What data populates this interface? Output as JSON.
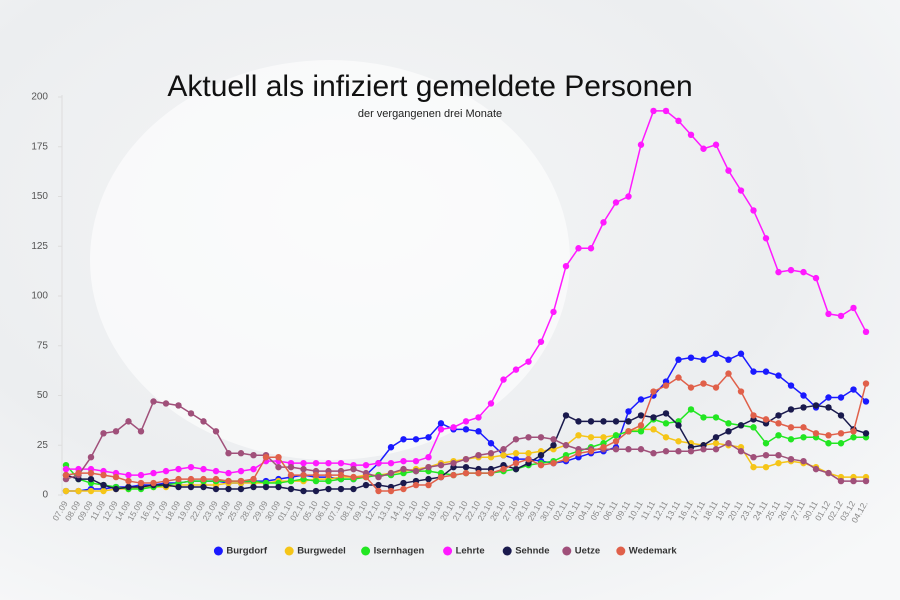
{
  "chart_data": {
    "type": "line",
    "title": "Aktuell als infiziert gemeldete Personen",
    "subtitle": "der vergangenen drei Monate",
    "categories": [
      "07.09",
      "08.09",
      "09.09",
      "11.09",
      "12.09",
      "14.09",
      "15.09",
      "16.09",
      "17.09",
      "18.09",
      "19.09",
      "22.09",
      "23.09",
      "24.09",
      "25.09",
      "28.09",
      "29.09",
      "30.09",
      "01.10",
      "02.10",
      "05.10",
      "06.10",
      "07.10",
      "08.10",
      "09.10",
      "12.10",
      "13.10",
      "14.10",
      "15.10",
      "16.10",
      "19.10",
      "20.10",
      "21.10",
      "22.10",
      "23.10",
      "26.10",
      "27.10",
      "28.10",
      "29.10",
      "30.10",
      "02.11",
      "03.11",
      "04.11",
      "05.11",
      "06.11",
      "09.11",
      "10.11",
      "11.11",
      "12.11",
      "13.11",
      "16.11",
      "17.11",
      "18.11",
      "19.11",
      "20.11",
      "23.11",
      "24.11",
      "25.11",
      "26.11",
      "27.11",
      "30.11",
      "01.12",
      "02.12",
      "03.12",
      "04.12."
    ],
    "series": [
      {
        "name": "Burgdorf",
        "color": "#1a1aff",
        "values": [
          2,
          2,
          3,
          3,
          4,
          4,
          5,
          5,
          6,
          6,
          7,
          7,
          7,
          6,
          6,
          7,
          7,
          8,
          9,
          10,
          9,
          9,
          8,
          8,
          10,
          16,
          24,
          28,
          28,
          29,
          36,
          33,
          33,
          32,
          26,
          20,
          18,
          18,
          17,
          16,
          17,
          19,
          21,
          22,
          24,
          42,
          48,
          50,
          57,
          68,
          69,
          68,
          71,
          68,
          71,
          62,
          62,
          60,
          55,
          50,
          44,
          49,
          49,
          53,
          47
        ]
      },
      {
        "name": "Burgwedel",
        "color": "#f5c518",
        "values": [
          2,
          2,
          2,
          2,
          3,
          3,
          4,
          4,
          4,
          5,
          5,
          5,
          5,
          6,
          6,
          6,
          6,
          7,
          7,
          7,
          8,
          8,
          9,
          9,
          10,
          10,
          11,
          12,
          13,
          14,
          16,
          17,
          18,
          19,
          19,
          20,
          21,
          21,
          22,
          23,
          25,
          30,
          29,
          29,
          30,
          32,
          33,
          33,
          29,
          27,
          26,
          25,
          26,
          25,
          24,
          14,
          14,
          16,
          17,
          16,
          14,
          11,
          9,
          9,
          9
        ]
      },
      {
        "name": "Isernhagen",
        "color": "#22e622",
        "values": [
          15,
          8,
          6,
          5,
          4,
          3,
          3,
          4,
          5,
          6,
          7,
          7,
          7,
          7,
          7,
          7,
          6,
          6,
          7,
          8,
          7,
          7,
          8,
          8,
          9,
          10,
          10,
          11,
          12,
          12,
          11,
          10,
          11,
          11,
          11,
          12,
          13,
          15,
          16,
          17,
          20,
          22,
          24,
          26,
          30,
          32,
          32,
          38,
          36,
          37,
          43,
          39,
          39,
          36,
          35,
          34,
          26,
          30,
          28,
          29,
          29,
          26,
          26,
          29,
          29
        ]
      },
      {
        "name": "Lehrte",
        "color": "#ff19ff",
        "values": [
          13,
          13,
          13,
          12,
          11,
          10,
          10,
          11,
          12,
          13,
          14,
          13,
          12,
          11,
          12,
          13,
          17,
          17,
          16,
          16,
          16,
          16,
          16,
          15,
          15,
          16,
          16,
          17,
          17,
          19,
          33,
          34,
          37,
          39,
          46,
          58,
          63,
          67,
          77,
          92,
          115,
          124,
          124,
          137,
          147,
          150,
          176,
          193,
          193,
          188,
          181,
          174,
          176,
          163,
          153,
          143,
          129,
          112,
          113,
          112,
          109,
          91,
          90,
          94,
          82
        ]
      },
      {
        "name": "Sehnde",
        "color": "#1a1a4d",
        "values": [
          10,
          8,
          8,
          5,
          3,
          4,
          4,
          5,
          5,
          4,
          4,
          4,
          3,
          3,
          3,
          4,
          4,
          4,
          3,
          2,
          2,
          3,
          3,
          3,
          5,
          5,
          4,
          6,
          7,
          8,
          9,
          14,
          14,
          13,
          13,
          15,
          13,
          16,
          20,
          25,
          40,
          37,
          37,
          37,
          37,
          37,
          40,
          39,
          41,
          35,
          24,
          25,
          29,
          32,
          35,
          38,
          36,
          40,
          43,
          44,
          45,
          44,
          40,
          33,
          31
        ]
      },
      {
        "name": "Uetze",
        "color": "#a0507a",
        "values": [
          8,
          10,
          19,
          31,
          32,
          37,
          32,
          47,
          46,
          45,
          41,
          37,
          32,
          21,
          21,
          20,
          20,
          14,
          14,
          13,
          12,
          12,
          12,
          13,
          11,
          9,
          11,
          13,
          12,
          14,
          15,
          16,
          18,
          20,
          21,
          23,
          28,
          29,
          29,
          28,
          25,
          23,
          23,
          23,
          23,
          23,
          23,
          21,
          22,
          22,
          22,
          23,
          23,
          26,
          22,
          19,
          20,
          20,
          18,
          17,
          13,
          11,
          7,
          7,
          7
        ]
      },
      {
        "name": "Wedemark",
        "color": "#e0604a",
        "values": [
          10,
          11,
          11,
          10,
          9,
          7,
          6,
          6,
          7,
          8,
          8,
          8,
          8,
          7,
          7,
          8,
          19,
          19,
          10,
          10,
          10,
          10,
          10,
          9,
          9,
          2,
          2,
          3,
          5,
          5,
          9,
          10,
          11,
          11,
          11,
          13,
          16,
          18,
          15,
          16,
          18,
          21,
          22,
          24,
          27,
          32,
          35,
          52,
          55,
          59,
          54,
          56,
          54,
          61,
          52,
          40,
          38,
          36,
          34,
          34,
          31,
          30,
          31,
          32,
          56
        ]
      }
    ],
    "ylim": [
      0,
      200
    ],
    "yticks": [
      0,
      25,
      50,
      75,
      100,
      125,
      150,
      175,
      200
    ],
    "grid": false,
    "legend": "bottom"
  }
}
